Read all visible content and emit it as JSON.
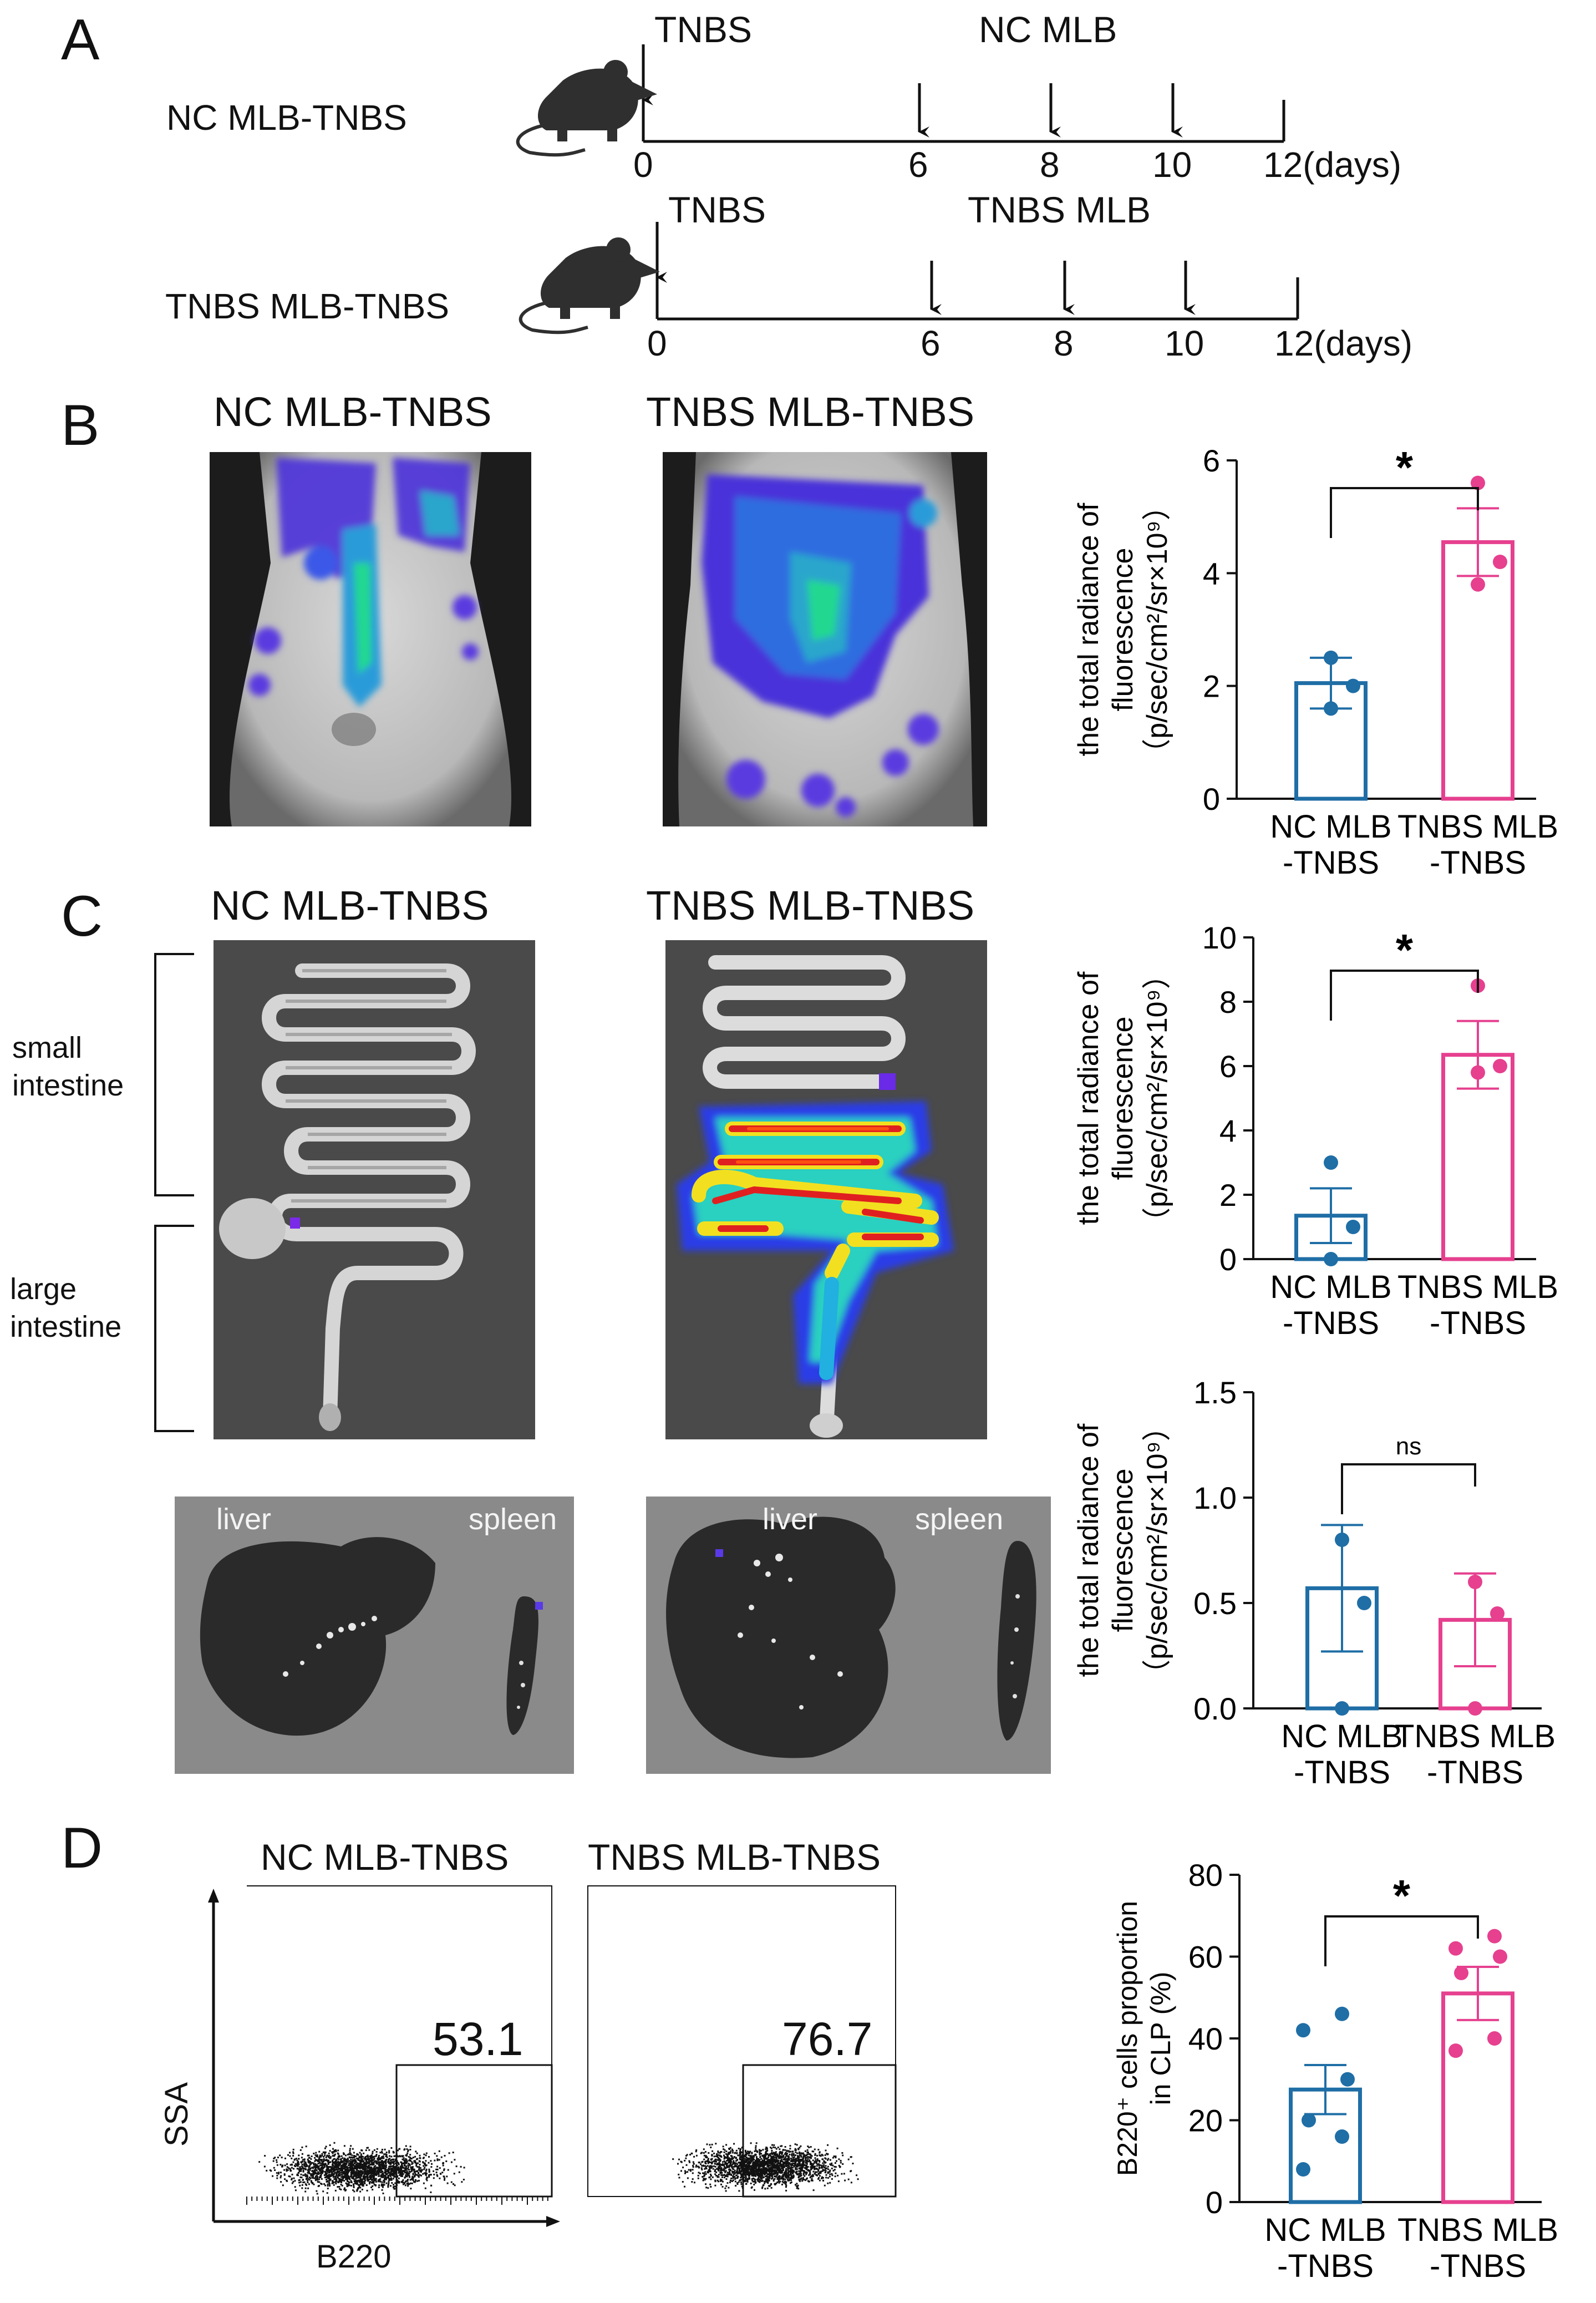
{
  "panels": {
    "A": {
      "letter": "A",
      "timelines": [
        {
          "group_label": "NC MLB-TNBS",
          "top_label": "TNBS",
          "treatment_label": "NC MLB",
          "ticks": [
            "0",
            "6",
            "8",
            "10",
            "12(days)"
          ]
        },
        {
          "group_label": "TNBS MLB-TNBS",
          "top_label": "TNBS",
          "treatment_label": "TNBS MLB",
          "ticks": [
            "0",
            "6",
            "8",
            "10",
            "12(days)"
          ]
        }
      ],
      "mouse_icon": "mouse-icon"
    },
    "B": {
      "letter": "B",
      "image_titles": [
        "NC MLB-TNBS",
        "TNBS MLB-TNBS"
      ]
    },
    "C": {
      "letter": "C",
      "image_titles": [
        "NC MLB-TNBS",
        "TNBS MLB-TNBS"
      ],
      "bracket_labels": [
        "small\nintestine",
        "large\nintestine"
      ],
      "organ_labels_left": [
        "liver",
        "spleen"
      ],
      "organ_labels_right": [
        "liver",
        "spleen"
      ]
    },
    "D": {
      "letter": "D",
      "flow_titles": [
        "NC MLB-TNBS",
        "TNBS MLB-TNBS"
      ],
      "gate_values": [
        "53.1",
        "76.7"
      ],
      "ylabel": "SSA",
      "xlabel": "B220"
    }
  },
  "colors": {
    "nc": "#1f6ea6",
    "tnbs": "#e6408f",
    "axis": "#111111"
  },
  "chart_data": [
    {
      "id": "B-bar",
      "type": "bar",
      "categories": [
        "NC MLB\n-TNBS",
        "TNBS MLB\n-TNBS"
      ],
      "values": [
        2.05,
        4.55
      ],
      "sem": [
        0.45,
        0.6
      ],
      "points": [
        [
          1.6,
          2.0,
          2.5
        ],
        [
          3.8,
          4.2,
          5.6
        ]
      ],
      "ylabel_lines": [
        "the total radiance of",
        "fluorescence",
        "（p/sec/cm²/sr×10⁹）"
      ],
      "ylim": [
        0,
        6
      ],
      "yticks": [
        0,
        2,
        4,
        6
      ],
      "significance": "*"
    },
    {
      "id": "C-bar-intestine",
      "type": "bar",
      "categories": [
        "NC MLB\n-TNBS",
        "TNBS MLB\n-TNBS"
      ],
      "values": [
        1.35,
        6.35
      ],
      "sem": [
        0.85,
        1.05
      ],
      "points": [
        [
          0.0,
          1.0,
          3.0
        ],
        [
          5.8,
          6.0,
          8.5
        ]
      ],
      "ylabel_lines": [
        "the total radiance of",
        "fluorescence",
        "（p/sec/cm²/sr×10⁹）"
      ],
      "ylim": [
        0,
        10
      ],
      "yticks": [
        0,
        2,
        4,
        6,
        8,
        10
      ],
      "significance": "*"
    },
    {
      "id": "C-bar-organs",
      "type": "bar",
      "categories": [
        "NC MLB\n-TNBS",
        "TNBS MLB\n-TNBS"
      ],
      "values": [
        0.57,
        0.42
      ],
      "sem": [
        0.3,
        0.22
      ],
      "points": [
        [
          0.0,
          0.5,
          0.8
        ],
        [
          0.0,
          0.45,
          0.6
        ]
      ],
      "ylabel_lines": [
        "the total radiance of",
        "fluorescence",
        "（p/sec/cm²/sr×10⁹）"
      ],
      "ylim": [
        0,
        1.5
      ],
      "yticks": [
        "0.0",
        "0.5",
        "1.0",
        "1.5"
      ],
      "significance": "ns"
    },
    {
      "id": "D-bar",
      "type": "bar",
      "categories": [
        "NC MLB\n-TNBS",
        "TNBS MLB\n-TNBS"
      ],
      "values": [
        27.5,
        51
      ],
      "sem": [
        6,
        6.5
      ],
      "points": [
        [
          8,
          16,
          20,
          30,
          42,
          46
        ],
        [
          37,
          40,
          56,
          60,
          62,
          65
        ]
      ],
      "ylabel_lines": [
        "B220⁺ cells proportion",
        "in CLP (%)"
      ],
      "ylim": [
        0,
        80
      ],
      "yticks": [
        0,
        20,
        40,
        60,
        80
      ],
      "significance": "*"
    }
  ]
}
